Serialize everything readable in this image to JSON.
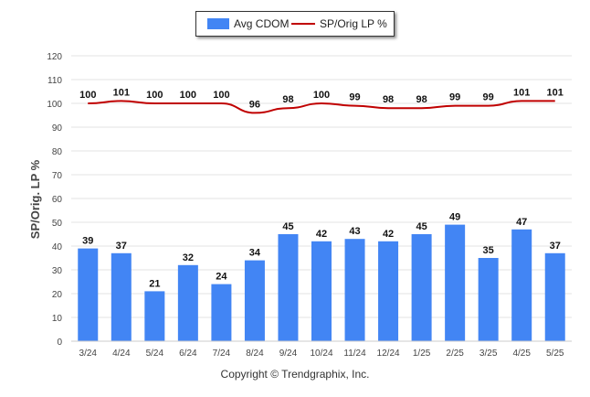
{
  "colors": {
    "bar": "#4285f4",
    "line": "#c00000",
    "grid": "#e3e3e3",
    "axis_text": "#444444"
  },
  "legend": {
    "bar_label": "Avg CDOM",
    "line_label": "SP/Orig LP %"
  },
  "footer": {
    "copyright": "Copyright © Trendgraphix, Inc."
  },
  "chart_data": {
    "type": "bar",
    "ylabel": "SP/Orig. LP %",
    "ylim": [
      0,
      120
    ],
    "yticks": [
      0,
      10,
      20,
      30,
      40,
      50,
      60,
      70,
      80,
      90,
      100,
      110,
      120
    ],
    "grid": true,
    "legend_position": "top-center",
    "categories": [
      "3/24",
      "4/24",
      "5/24",
      "6/24",
      "7/24",
      "8/24",
      "9/24",
      "10/24",
      "11/24",
      "12/24",
      "1/25",
      "2/25",
      "3/25",
      "4/25",
      "5/25"
    ],
    "series": [
      {
        "name": "Avg CDOM",
        "type": "bar",
        "values": [
          39,
          37,
          21,
          32,
          24,
          34,
          45,
          42,
          43,
          42,
          45,
          49,
          35,
          47,
          37
        ]
      },
      {
        "name": "SP/Orig LP %",
        "type": "line",
        "values": [
          100,
          101,
          100,
          100,
          100,
          96,
          98,
          100,
          99,
          98,
          98,
          99,
          99,
          101,
          101
        ]
      }
    ]
  }
}
